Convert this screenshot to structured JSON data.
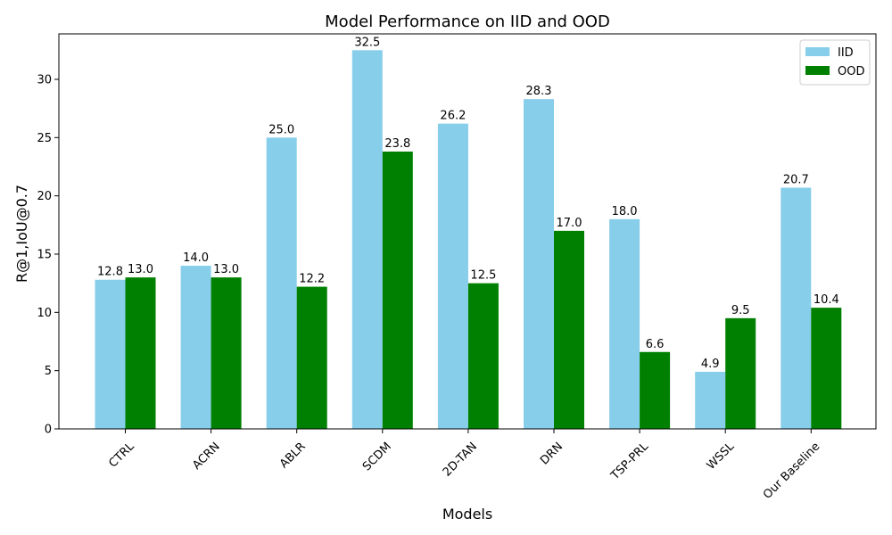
{
  "chart_data": {
    "type": "bar",
    "title": "Model Performance on IID and OOD",
    "xlabel": "Models",
    "ylabel": "R@1,IoU@0.7",
    "categories": [
      "CTRL",
      "ACRN",
      "ABLR",
      "SCDM",
      "2D-TAN",
      "DRN",
      "TSP-PRL",
      "WSSL",
      "Our Baseline"
    ],
    "series": [
      {
        "name": "IID",
        "color": "#87ceeb",
        "values": [
          12.8,
          14.0,
          25.0,
          32.5,
          26.2,
          28.3,
          18.0,
          4.9,
          20.7
        ]
      },
      {
        "name": "OOD",
        "color": "#008000",
        "values": [
          13.0,
          13.0,
          12.2,
          23.8,
          12.5,
          17.0,
          6.6,
          9.5,
          10.4
        ]
      }
    ],
    "data_labels": [
      [
        "12.8",
        "14.0",
        "25.0",
        "32.5",
        "26.2",
        "28.3",
        "18.0",
        "4.9",
        "20.7"
      ],
      [
        "13.0",
        "13.0",
        "12.2",
        "23.8",
        "12.5",
        "17.0",
        "6.6",
        "9.5",
        "10.4"
      ]
    ],
    "ylim": [
      0,
      33.9
    ],
    "yticks": [
      0,
      5,
      10,
      15,
      20,
      25,
      30
    ],
    "ytick_labels": [
      "0",
      "5",
      "10",
      "15",
      "20",
      "25",
      "30"
    ],
    "grid": false,
    "legend": "top-right",
    "xtick_rotation": 45
  }
}
